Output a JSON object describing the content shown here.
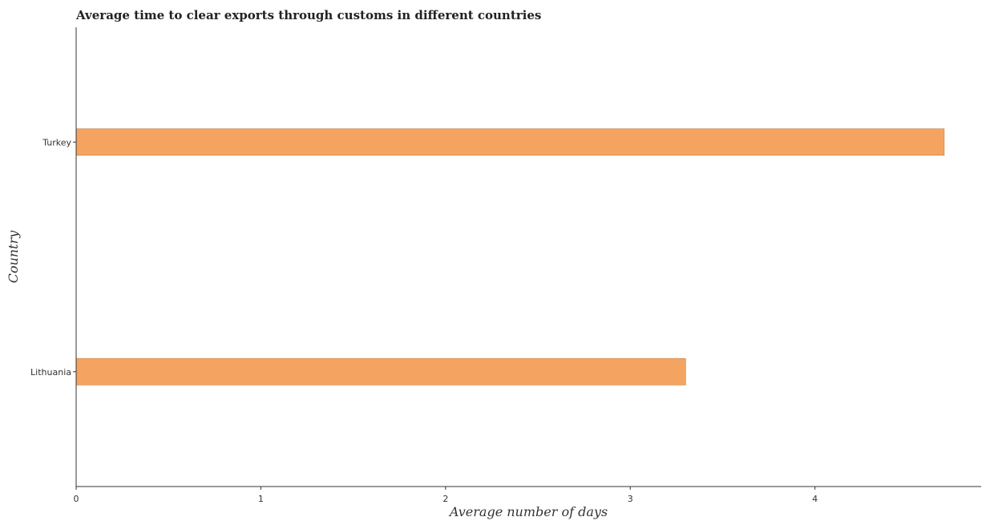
{
  "chart_data": {
    "type": "bar",
    "orientation": "horizontal",
    "title": "Average time to clear exports through customs in different countries",
    "xlabel": "Average number of days",
    "ylabel": "Country",
    "categories": [
      "Lithuania",
      "Turkey"
    ],
    "values": [
      3.3,
      4.7
    ],
    "xlim": [
      0,
      4.9
    ],
    "xticks": [
      0,
      1,
      2,
      3,
      4
    ],
    "grid": false,
    "bar_color": "#f4a460"
  }
}
